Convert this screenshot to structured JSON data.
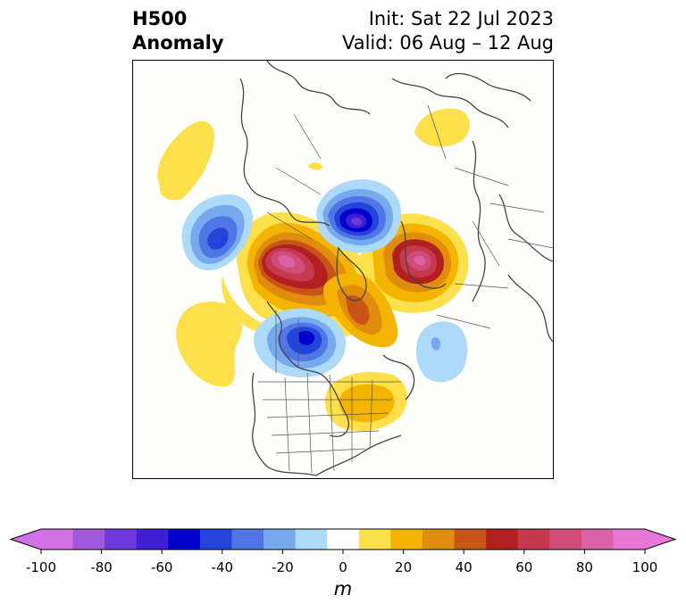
{
  "header": {
    "left_line1": "H500",
    "left_line2": "Anomaly",
    "right_line1": "Init: Sat 22 Jul 2023",
    "right_line2": "Valid: 06 Aug – 12 Aug"
  },
  "map": {
    "projection": "polar-stereographic",
    "region": "Northern Hemisphere / North America",
    "features": [
      {
        "label": "ridge",
        "sign": "positive",
        "peak_level_m": 90
      },
      {
        "label": "ridge",
        "sign": "positive",
        "peak_level_m": 90
      },
      {
        "label": "trough",
        "sign": "negative",
        "peak_level_m": -80
      },
      {
        "label": "trough",
        "sign": "negative",
        "peak_level_m": -60
      },
      {
        "label": "trough",
        "sign": "negative",
        "peak_level_m": -50
      }
    ]
  },
  "colorbar": {
    "unit": "m",
    "levels": [
      -100,
      -90,
      -80,
      -70,
      -60,
      -50,
      -40,
      -30,
      -20,
      -10,
      10,
      20,
      30,
      40,
      50,
      60,
      70,
      80,
      90,
      100
    ],
    "tick_labels": [
      "-100",
      "-80",
      "-60",
      "-40",
      "-20",
      "0",
      "20",
      "40",
      "60",
      "80",
      "100"
    ],
    "colors": [
      "#d270e6",
      "#a159dc",
      "#6d39dc",
      "#3f1fd6",
      "#0000cd",
      "#2343da",
      "#4f76e4",
      "#77a9ee",
      "#acdaf8",
      "#ffffff",
      "#fde04a",
      "#f3b500",
      "#e08c0c",
      "#c85418",
      "#b1201f",
      "#c5384d",
      "#d04d79",
      "#da62a7",
      "#e878d8"
    ],
    "extend_low_color": "#d270e6",
    "extend_high_color": "#e878d8"
  }
}
